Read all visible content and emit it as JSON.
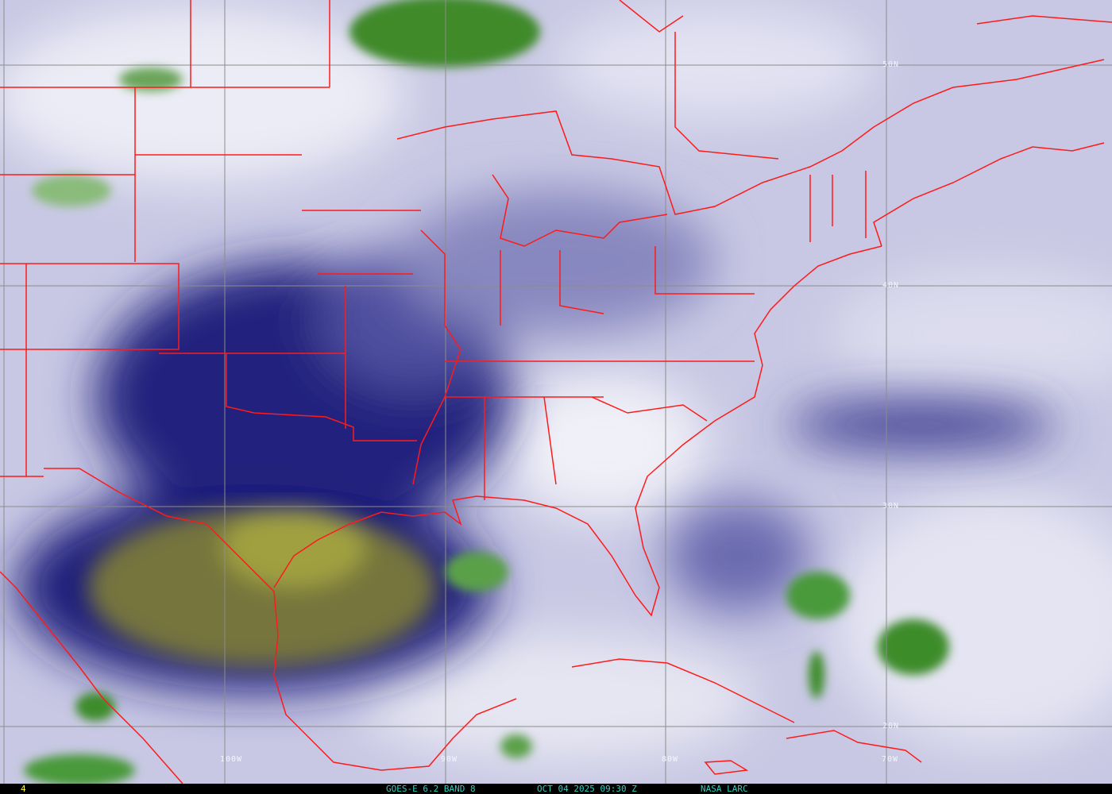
{
  "image": {
    "type": "GOES water vapor satellite image",
    "colors": {
      "border": "#ff1a1a",
      "grid": "#8c8c8c",
      "caption": "#30d0c0",
      "frame_number": "#ffff40",
      "dry": "#000080",
      "very_dry": "#8a8a3a",
      "cloud": "#3c8c2c",
      "moist": "#c8c8e6"
    }
  },
  "grid": {
    "longitudes": [
      "100W",
      "90W",
      "80W",
      "70W"
    ],
    "latitudes": [
      "50N",
      "40N",
      "30N",
      "20N"
    ]
  },
  "caption": {
    "frame": "4",
    "satellite": "GOES-E 6.2 BAND 8",
    "datetime": "OCT 04 2025 09:30 Z",
    "source": "NASA LARC"
  }
}
